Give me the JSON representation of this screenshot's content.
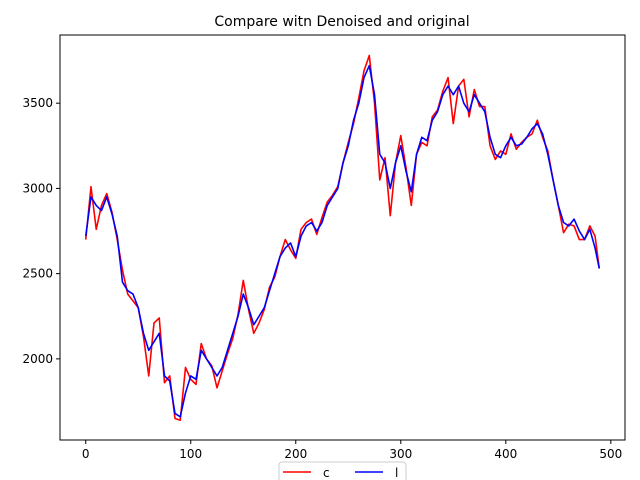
{
  "chart_data": {
    "type": "line",
    "title": "Compare witn Denoised and original",
    "x": [
      0,
      5,
      10,
      15,
      20,
      25,
      30,
      35,
      40,
      45,
      50,
      55,
      60,
      65,
      70,
      75,
      80,
      85,
      90,
      95,
      100,
      105,
      110,
      115,
      120,
      125,
      130,
      135,
      140,
      145,
      150,
      155,
      160,
      165,
      170,
      175,
      180,
      185,
      190,
      195,
      200,
      205,
      210,
      215,
      220,
      225,
      230,
      235,
      240,
      245,
      250,
      255,
      260,
      265,
      270,
      275,
      280,
      285,
      290,
      295,
      300,
      305,
      310,
      315,
      320,
      325,
      330,
      335,
      340,
      345,
      350,
      355,
      360,
      365,
      370,
      375,
      380,
      385,
      390,
      395,
      400,
      405,
      410,
      415,
      420,
      425,
      430,
      435,
      440,
      445,
      450,
      455,
      460,
      465,
      470,
      475,
      480,
      485,
      489
    ],
    "series": [
      {
        "name": "c",
        "color": "#ff0000",
        "values": [
          2700,
          3010,
          2760,
          2900,
          2970,
          2860,
          2700,
          2520,
          2380,
          2340,
          2300,
          2130,
          1900,
          2210,
          2240,
          1860,
          1900,
          1650,
          1640,
          1950,
          1880,
          1850,
          2090,
          2000,
          1960,
          1830,
          1930,
          2030,
          2120,
          2260,
          2460,
          2290,
          2150,
          2210,
          2290,
          2420,
          2480,
          2600,
          2700,
          2640,
          2590,
          2760,
          2800,
          2820,
          2730,
          2830,
          2920,
          2960,
          3010,
          3150,
          3270,
          3380,
          3530,
          3690,
          3780,
          3500,
          3050,
          3180,
          2840,
          3150,
          3310,
          3120,
          2900,
          3200,
          3270,
          3250,
          3420,
          3460,
          3570,
          3650,
          3380,
          3600,
          3640,
          3420,
          3580,
          3480,
          3480,
          3250,
          3170,
          3220,
          3200,
          3320,
          3230,
          3270,
          3300,
          3320,
          3400,
          3300,
          3220,
          3050,
          2900,
          2740,
          2790,
          2780,
          2700,
          2700,
          2780,
          2720,
          2530
        ]
      },
      {
        "name": "l",
        "color": "#0000ff",
        "values": [
          2720,
          2950,
          2900,
          2870,
          2950,
          2850,
          2720,
          2450,
          2400,
          2380,
          2300,
          2150,
          2050,
          2100,
          2150,
          1900,
          1870,
          1680,
          1660,
          1800,
          1900,
          1880,
          2050,
          2000,
          1950,
          1900,
          1950,
          2050,
          2150,
          2250,
          2380,
          2300,
          2200,
          2250,
          2300,
          2400,
          2500,
          2600,
          2650,
          2680,
          2600,
          2720,
          2780,
          2800,
          2750,
          2800,
          2900,
          2950,
          3000,
          3150,
          3250,
          3400,
          3500,
          3650,
          3720,
          3550,
          3200,
          3150,
          3000,
          3150,
          3250,
          3100,
          2980,
          3200,
          3300,
          3280,
          3400,
          3450,
          3550,
          3600,
          3550,
          3600,
          3500,
          3450,
          3550,
          3500,
          3450,
          3300,
          3200,
          3180,
          3250,
          3300,
          3250,
          3260,
          3300,
          3350,
          3380,
          3320,
          3200,
          3050,
          2900,
          2800,
          2780,
          2820,
          2750,
          2700,
          2760,
          2650,
          2530
        ]
      }
    ],
    "xlim": [
      -24.5,
      513.5
    ],
    "ylim": [
      1524,
      3900
    ],
    "xticks": [
      0,
      100,
      200,
      300,
      400,
      500
    ],
    "yticks": [
      2000,
      2500,
      3000,
      3500
    ],
    "legend": "lower center"
  }
}
